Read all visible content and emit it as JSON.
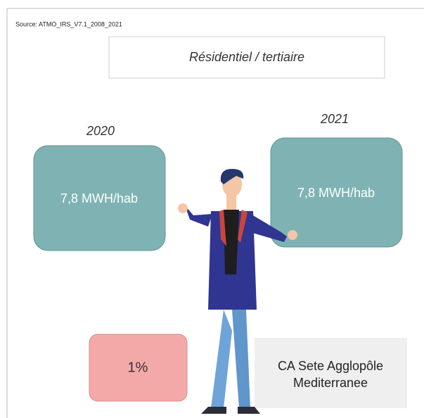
{
  "source": "Source: ATMO_IRS_V7.1_2008_2021",
  "title": "Résidentiel / tertiaire",
  "panels": [
    {
      "year": "2020",
      "value": "7,8 MWH/hab"
    },
    {
      "year": "2021",
      "value": "7,8 MWH/hab"
    }
  ],
  "change": "1%",
  "territory": [
    "CA Sete Agglopôle",
    "Mediterranee"
  ]
}
